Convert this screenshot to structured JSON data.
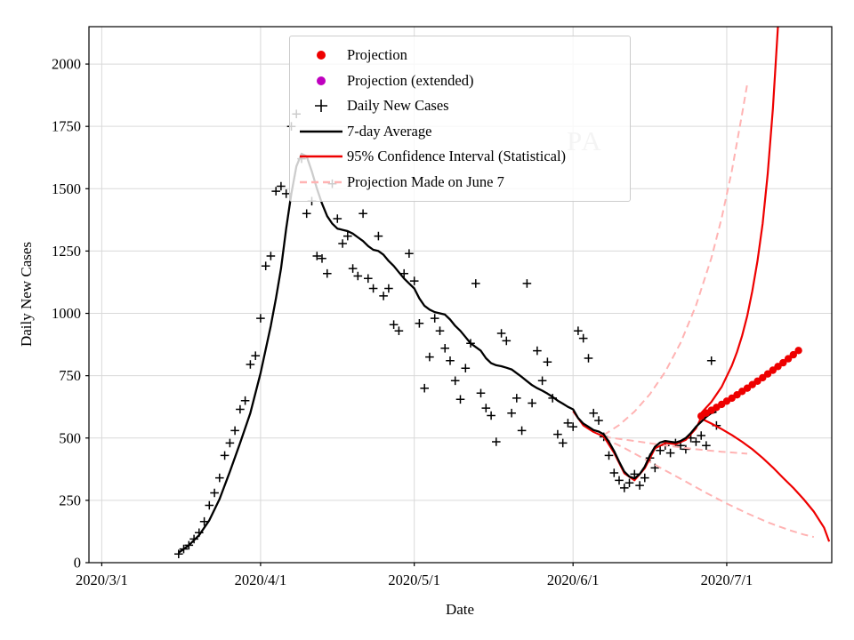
{
  "chart_data": {
    "type": "line+scatter",
    "title": "",
    "xlabel": "Date",
    "ylabel": "Daily New Cases",
    "watermark": {
      "text": "PA",
      "color": "#c6c6c6"
    },
    "x_ticks": [
      "2020/3/1",
      "2020/4/1",
      "2020/5/1",
      "2020/6/1",
      "2020/7/1"
    ],
    "x_tick_days": [
      0,
      31,
      61,
      92,
      122
    ],
    "y_ticks": [
      0,
      250,
      500,
      750,
      1000,
      1250,
      1500,
      1750,
      2000
    ],
    "xlim_days": [
      -2.5,
      142.5
    ],
    "ylim": [
      0,
      2150
    ],
    "grid": true,
    "legend_position": "upper center",
    "legend": [
      {
        "label": "Projection",
        "marker": "dot",
        "color": "#ee0000"
      },
      {
        "label": "Projection (extended)",
        "marker": "dot",
        "color": "#bf00bf"
      },
      {
        "label": "Daily New Cases",
        "marker": "plus",
        "color": "#000000"
      },
      {
        "label": "7-day Average",
        "marker": "line",
        "color": "#000000"
      },
      {
        "label": "95% Confidence Interval (Statistical)",
        "marker": "line",
        "color": "#ee0000"
      },
      {
        "label": "Projection Made on June 7",
        "marker": "dashed",
        "color": "#ffb3b3"
      }
    ],
    "series": [
      {
        "name": "Daily New Cases",
        "type": "scatter_plus",
        "color": "#000000",
        "points": [
          [
            15,
            35
          ],
          [
            16,
            55
          ],
          [
            17,
            70
          ],
          [
            18,
            95
          ],
          [
            19,
            120
          ],
          [
            20,
            165
          ],
          [
            21,
            230
          ],
          [
            22,
            280
          ],
          [
            23,
            340
          ],
          [
            24,
            430
          ],
          [
            25,
            480
          ],
          [
            26,
            530
          ],
          [
            27,
            615
          ],
          [
            28,
            650
          ],
          [
            29,
            795
          ],
          [
            30,
            830
          ],
          [
            31,
            980
          ],
          [
            32,
            1190
          ],
          [
            33,
            1230
          ],
          [
            34,
            1490
          ],
          [
            35,
            1510
          ],
          [
            36,
            1480
          ],
          [
            37,
            1750
          ],
          [
            38,
            1800
          ],
          [
            39,
            1620
          ],
          [
            40,
            1400
          ],
          [
            41,
            1450
          ],
          [
            42,
            1230
          ],
          [
            43,
            1220
          ],
          [
            44,
            1160
          ],
          [
            45,
            1520
          ],
          [
            46,
            1380
          ],
          [
            47,
            1280
          ],
          [
            48,
            1310
          ],
          [
            49,
            1180
          ],
          [
            50,
            1150
          ],
          [
            51,
            1400
          ],
          [
            52,
            1140
          ],
          [
            53,
            1100
          ],
          [
            54,
            1310
          ],
          [
            55,
            1070
          ],
          [
            56,
            1100
          ],
          [
            57,
            955
          ],
          [
            58,
            930
          ],
          [
            59,
            1160
          ],
          [
            60,
            1240
          ],
          [
            61,
            1130
          ],
          [
            62,
            960
          ],
          [
            63,
            700
          ],
          [
            64,
            825
          ],
          [
            65,
            980
          ],
          [
            66,
            930
          ],
          [
            67,
            860
          ],
          [
            68,
            810
          ],
          [
            69,
            730
          ],
          [
            70,
            655
          ],
          [
            71,
            780
          ],
          [
            72,
            880
          ],
          [
            73,
            1120
          ],
          [
            74,
            680
          ],
          [
            75,
            620
          ],
          [
            76,
            590
          ],
          [
            77,
            485
          ],
          [
            78,
            920
          ],
          [
            79,
            890
          ],
          [
            80,
            600
          ],
          [
            81,
            660
          ],
          [
            82,
            530
          ],
          [
            83,
            1120
          ],
          [
            84,
            640
          ],
          [
            85,
            850
          ],
          [
            86,
            730
          ],
          [
            87,
            805
          ],
          [
            88,
            660
          ],
          [
            89,
            515
          ],
          [
            90,
            480
          ],
          [
            91,
            560
          ],
          [
            92,
            545
          ],
          [
            93,
            930
          ],
          [
            94,
            900
          ],
          [
            95,
            820
          ],
          [
            96,
            600
          ],
          [
            97,
            570
          ],
          [
            98,
            505
          ],
          [
            99,
            430
          ],
          [
            100,
            360
          ],
          [
            101,
            330
          ],
          [
            102,
            300
          ],
          [
            103,
            320
          ],
          [
            104,
            355
          ],
          [
            105,
            310
          ],
          [
            106,
            340
          ],
          [
            107,
            420
          ],
          [
            108,
            380
          ],
          [
            109,
            450
          ],
          [
            110,
            470
          ],
          [
            111,
            440
          ],
          [
            112,
            480
          ],
          [
            113,
            470
          ],
          [
            114,
            455
          ],
          [
            115,
            500
          ],
          [
            116,
            485
          ],
          [
            117,
            510
          ],
          [
            118,
            470
          ],
          [
            119,
            810
          ],
          [
            120,
            550
          ]
        ]
      },
      {
        "name": "Projection Made on June 7 (upper)",
        "type": "dashed",
        "color": "#ffb3b3",
        "width": 2,
        "points": [
          [
            98,
            512
          ],
          [
            101,
            552
          ],
          [
            104,
            606
          ],
          [
            107,
            676
          ],
          [
            110,
            766
          ],
          [
            113,
            882
          ],
          [
            116,
            1032
          ],
          [
            119,
            1222
          ],
          [
            121,
            1382
          ],
          [
            123,
            1572
          ],
          [
            125,
            1800
          ],
          [
            126,
            1920
          ]
        ]
      },
      {
        "name": "Projection Made on June 7 (central)",
        "type": "dashed",
        "color": "#ffb3b3",
        "width": 2,
        "points": [
          [
            98,
            505
          ],
          [
            104,
            488
          ],
          [
            110,
            470
          ],
          [
            116,
            455
          ],
          [
            121,
            445
          ],
          [
            126,
            437
          ]
        ]
      },
      {
        "name": "Projection Made on June 7 (lower)",
        "type": "dashed",
        "color": "#ffb3b3",
        "width": 2,
        "points": [
          [
            98,
            500
          ],
          [
            102,
            460
          ],
          [
            106,
            415
          ],
          [
            110,
            370
          ],
          [
            114,
            325
          ],
          [
            118,
            280
          ],
          [
            122,
            237
          ],
          [
            126,
            198
          ],
          [
            130,
            162
          ],
          [
            134,
            132
          ],
          [
            137,
            113
          ],
          [
            139,
            103
          ]
        ]
      },
      {
        "name": "Statistical fit",
        "type": "line",
        "color": "#ee0000",
        "width": 2,
        "points": [
          [
            92,
            608
          ],
          [
            94,
            550
          ],
          [
            96,
            524
          ],
          [
            98,
            506
          ],
          [
            100,
            440
          ],
          [
            102,
            358
          ],
          [
            104,
            330
          ],
          [
            106,
            378
          ],
          [
            108,
            458
          ],
          [
            110,
            480
          ],
          [
            112,
            475
          ],
          [
            114,
            492
          ],
          [
            116,
            538
          ],
          [
            117,
            583
          ]
        ]
      },
      {
        "name": "95% CI upper",
        "type": "line",
        "color": "#ee0000",
        "width": 2.2,
        "points": [
          [
            117,
            600
          ],
          [
            119,
            645
          ],
          [
            121,
            705
          ],
          [
            123,
            790
          ],
          [
            124,
            845
          ],
          [
            125,
            910
          ],
          [
            126,
            990
          ],
          [
            127,
            1090
          ],
          [
            128,
            1210
          ],
          [
            129,
            1360
          ],
          [
            130,
            1560
          ],
          [
            131,
            1820
          ],
          [
            132,
            2150
          ]
        ]
      },
      {
        "name": "95% CI lower",
        "type": "line",
        "color": "#ee0000",
        "width": 2.2,
        "points": [
          [
            117,
            578
          ],
          [
            119,
            558
          ],
          [
            121,
            536
          ],
          [
            123,
            512
          ],
          [
            125,
            485
          ],
          [
            127,
            455
          ],
          [
            129,
            420
          ],
          [
            131,
            382
          ],
          [
            133,
            340
          ],
          [
            135,
            300
          ],
          [
            137,
            255
          ],
          [
            139,
            205
          ],
          [
            141,
            140
          ],
          [
            142,
            85
          ]
        ]
      },
      {
        "name": "7-day Average",
        "type": "line",
        "color": "#000000",
        "width": 2.3,
        "points": [
          [
            15,
            40
          ],
          [
            17,
            70
          ],
          [
            19,
            110
          ],
          [
            21,
            170
          ],
          [
            23,
            255
          ],
          [
            25,
            365
          ],
          [
            27,
            480
          ],
          [
            29,
            600
          ],
          [
            31,
            760
          ],
          [
            33,
            950
          ],
          [
            34,
            1060
          ],
          [
            35,
            1180
          ],
          [
            36,
            1340
          ],
          [
            37,
            1480
          ],
          [
            38,
            1590
          ],
          [
            39,
            1640
          ],
          [
            40,
            1630
          ],
          [
            41,
            1570
          ],
          [
            42,
            1500
          ],
          [
            43,
            1440
          ],
          [
            44,
            1390
          ],
          [
            45,
            1360
          ],
          [
            46,
            1340
          ],
          [
            47,
            1335
          ],
          [
            48,
            1330
          ],
          [
            49,
            1320
          ],
          [
            50,
            1305
          ],
          [
            51,
            1290
          ],
          [
            52,
            1270
          ],
          [
            53,
            1255
          ],
          [
            54,
            1250
          ],
          [
            55,
            1235
          ],
          [
            56,
            1210
          ],
          [
            57,
            1190
          ],
          [
            58,
            1165
          ],
          [
            59,
            1140
          ],
          [
            60,
            1120
          ],
          [
            61,
            1100
          ],
          [
            62,
            1060
          ],
          [
            63,
            1030
          ],
          [
            64,
            1015
          ],
          [
            65,
            1005
          ],
          [
            66,
            1000
          ],
          [
            67,
            995
          ],
          [
            68,
            975
          ],
          [
            69,
            950
          ],
          [
            70,
            930
          ],
          [
            71,
            905
          ],
          [
            72,
            880
          ],
          [
            73,
            865
          ],
          [
            74,
            850
          ],
          [
            75,
            820
          ],
          [
            76,
            800
          ],
          [
            77,
            792
          ],
          [
            78,
            788
          ],
          [
            79,
            782
          ],
          [
            80,
            775
          ],
          [
            81,
            760
          ],
          [
            82,
            745
          ],
          [
            83,
            728
          ],
          [
            84,
            712
          ],
          [
            85,
            700
          ],
          [
            86,
            690
          ],
          [
            87,
            678
          ],
          [
            88,
            665
          ],
          [
            89,
            650
          ],
          [
            90,
            638
          ],
          [
            91,
            625
          ],
          [
            92,
            615
          ],
          [
            93,
            580
          ],
          [
            94,
            558
          ],
          [
            95,
            545
          ],
          [
            96,
            532
          ],
          [
            97,
            526
          ],
          [
            98,
            515
          ],
          [
            99,
            485
          ],
          [
            100,
            448
          ],
          [
            101,
            405
          ],
          [
            102,
            365
          ],
          [
            103,
            345
          ],
          [
            104,
            338
          ],
          [
            105,
            355
          ],
          [
            106,
            385
          ],
          [
            107,
            430
          ],
          [
            108,
            465
          ],
          [
            109,
            482
          ],
          [
            110,
            488
          ],
          [
            111,
            485
          ],
          [
            112,
            482
          ],
          [
            113,
            488
          ],
          [
            114,
            500
          ],
          [
            115,
            520
          ],
          [
            116,
            545
          ],
          [
            117,
            565
          ],
          [
            118,
            585
          ],
          [
            119,
            600
          ],
          [
            120,
            605
          ]
        ]
      },
      {
        "name": "Projection",
        "type": "scatter_dot",
        "color": "#ee0000",
        "r": 4.2,
        "points": [
          [
            117,
            588
          ],
          [
            118,
            600
          ],
          [
            119,
            611
          ],
          [
            120,
            623
          ],
          [
            121,
            635
          ],
          [
            122,
            648
          ],
          [
            123,
            660
          ],
          [
            124,
            673
          ],
          [
            125,
            687
          ],
          [
            126,
            700
          ],
          [
            127,
            714
          ],
          [
            128,
            728
          ],
          [
            129,
            742
          ],
          [
            130,
            757
          ],
          [
            131,
            772
          ],
          [
            132,
            787
          ],
          [
            133,
            802
          ],
          [
            134,
            818
          ],
          [
            135,
            834
          ],
          [
            136,
            851
          ]
        ]
      },
      {
        "name": "Projection (extended)",
        "type": "scatter_dot",
        "color": "#bf00bf",
        "r": 4.2,
        "points": []
      }
    ]
  }
}
